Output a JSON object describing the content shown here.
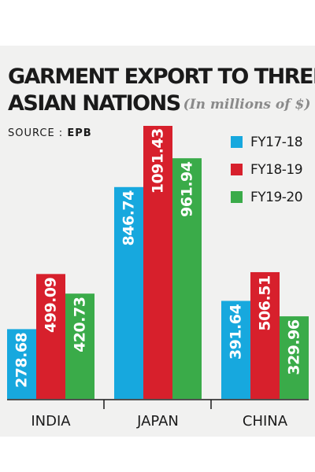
{
  "header": {
    "title_line1": "GARMENT EXPORT TO THREE",
    "title_line2": "ASIAN NATIONS",
    "subtitle": "(In millions of $)",
    "source_label": "SOURCE :",
    "source_value": "EPB"
  },
  "colors": {
    "FY17-18": "#17a8de",
    "FY18-19": "#d7202c",
    "FY19-20": "#3aab49",
    "value_text_light": "#ffffff",
    "value_text_dark": "#1a1a1a"
  },
  "chart_data": {
    "type": "bar",
    "title": "GARMENT EXPORT TO THREE ASIAN NATIONS",
    "subtitle": "(In millions of $)",
    "source": "EPB",
    "categories": [
      "INDIA",
      "JAPAN",
      "CHINA"
    ],
    "series": [
      {
        "name": "FY17-18",
        "values": [
          278.68,
          846.74,
          391.64
        ],
        "labels": [
          "278.68",
          "846.74",
          "391.64"
        ]
      },
      {
        "name": "FY18-19",
        "values": [
          499.09,
          1091.43,
          506.51
        ],
        "labels": [
          "499.09",
          "1091.43",
          "506.51"
        ]
      },
      {
        "name": "FY19-20",
        "values": [
          420.73,
          961.94,
          329.96
        ],
        "labels": [
          "420.73",
          "961.94",
          "329.96"
        ]
      }
    ],
    "ylim": [
      0,
      1091.43
    ],
    "legend_position": "top-right",
    "grid": false
  }
}
